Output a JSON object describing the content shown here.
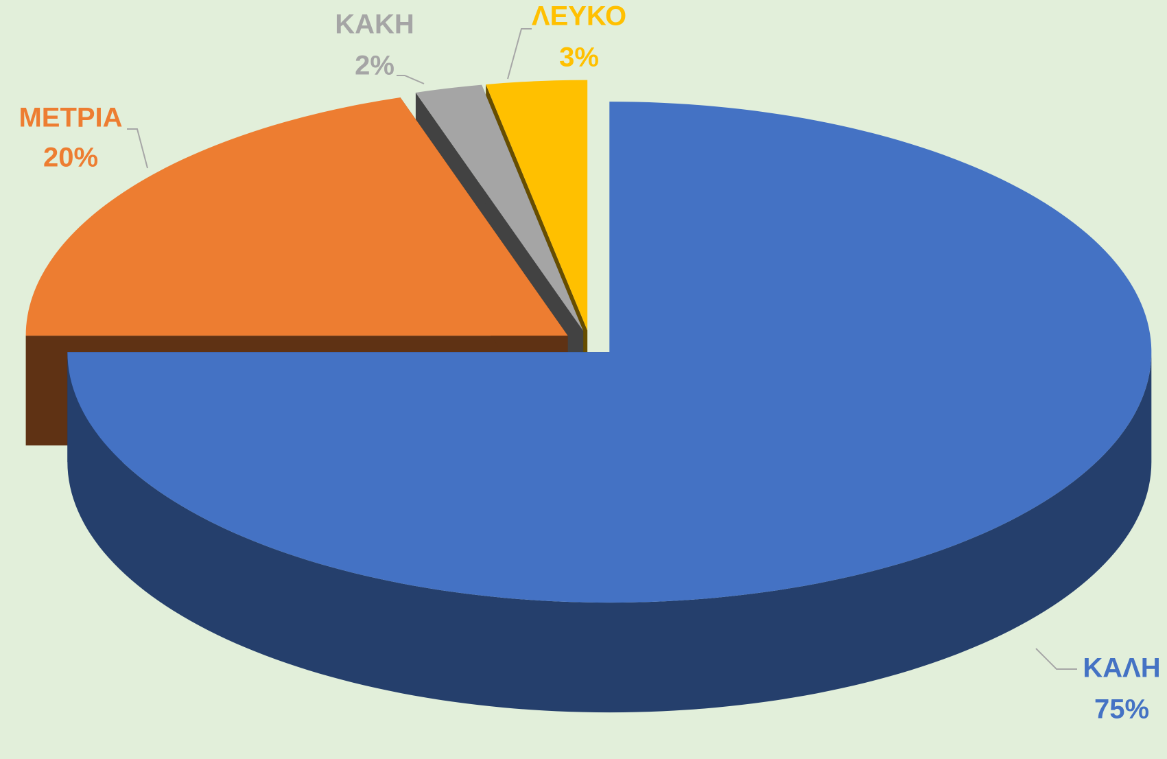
{
  "chart_data": {
    "type": "pie",
    "categories": [
      "ΚΑΛΗ",
      "ΜΕΤΡΙΑ",
      "ΚΑΚΗ",
      "ΛΕΥΚΟ"
    ],
    "values": [
      75,
      20,
      2,
      3
    ],
    "value_labels": [
      "75%",
      "20%",
      "2%",
      "3%"
    ],
    "colors": [
      "#4472c4",
      "#ed7d31",
      "#a5a5a5",
      "#ffc000"
    ]
  }
}
